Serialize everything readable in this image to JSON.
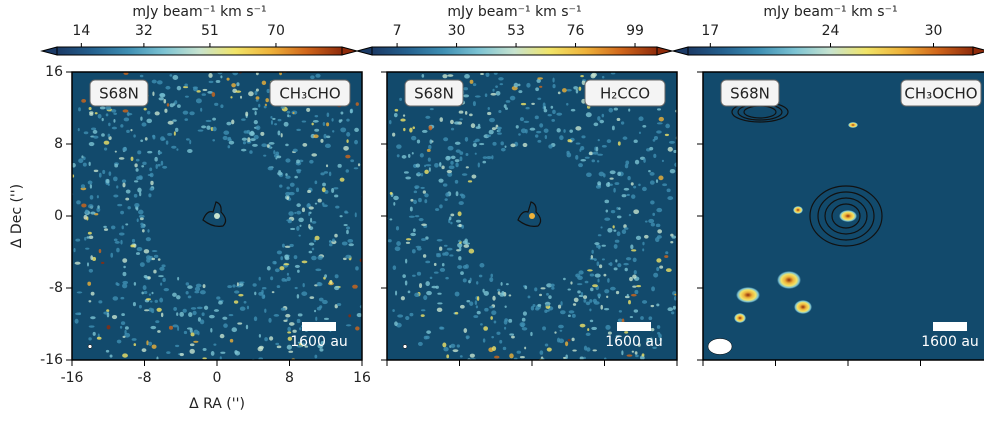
{
  "chart_data": [
    {
      "type": "map",
      "source": "S68N",
      "molecule": "CH₃CHO",
      "colorbar_label": "mJy beam⁻¹ km s⁻¹",
      "clim": [
        7,
        89
      ],
      "cticks": [
        14,
        32,
        51,
        70
      ],
      "xlim": [
        -16,
        16
      ],
      "ylim": [
        -16,
        16
      ],
      "xticks": [
        -16,
        -8,
        0,
        8,
        16
      ],
      "yticks": [
        16,
        8,
        0,
        -8,
        -16
      ],
      "tick_labels": true,
      "xlabel": "Δ RA ('')",
      "ylabel": "Δ Dec ('')",
      "scale_bar": "1600 au",
      "background": "#124a6c",
      "colormap": [
        "#1b3a66",
        "#25618f",
        "#3f8fb3",
        "#7cc3d3",
        "#c7e3cf",
        "#f1e468",
        "#eeb23a",
        "#d0661b",
        "#8f2b0b"
      ]
    },
    {
      "type": "map",
      "source": "S68N",
      "molecule": "H₂CCO",
      "colorbar_label": "mJy beam⁻¹ km s⁻¹",
      "clim": [
        -2.7,
        107.5
      ],
      "cticks": [
        7,
        30,
        53,
        76,
        99
      ],
      "xlim": [
        -16,
        16
      ],
      "ylim": [
        -16,
        16
      ],
      "xticks": [
        -16,
        -8,
        0,
        8,
        16
      ],
      "yticks": [
        16,
        8,
        0,
        -8,
        -16
      ],
      "tick_labels": false,
      "scale_bar": "1600 au",
      "background": "#124a6c",
      "colormap": [
        "#1b3a66",
        "#25618f",
        "#3f8fb3",
        "#7cc3d3",
        "#c7e3cf",
        "#f1e468",
        "#eeb23a",
        "#d0661b",
        "#8f2b0b"
      ]
    },
    {
      "type": "map",
      "source": "S68N",
      "molecule": "CH₃OCHO",
      "colorbar_label": "mJy beam⁻¹ km s⁻¹",
      "clim": [
        15.7,
        32.3
      ],
      "cticks": [
        17,
        24,
        30
      ],
      "xlim": [
        -16,
        16
      ],
      "ylim": [
        -16,
        16
      ],
      "xticks": [
        -16,
        -8,
        0,
        8,
        16
      ],
      "yticks": [
        16,
        8,
        0,
        -8,
        -16
      ],
      "tick_labels": false,
      "scale_bar": "1600 au",
      "background": "#124a6c",
      "colormap": [
        "#1b3a66",
        "#25618f",
        "#3f8fb3",
        "#7cc3d3",
        "#c7e3cf",
        "#f1e468",
        "#eeb23a",
        "#d0661b",
        "#8f2b0b"
      ]
    }
  ]
}
